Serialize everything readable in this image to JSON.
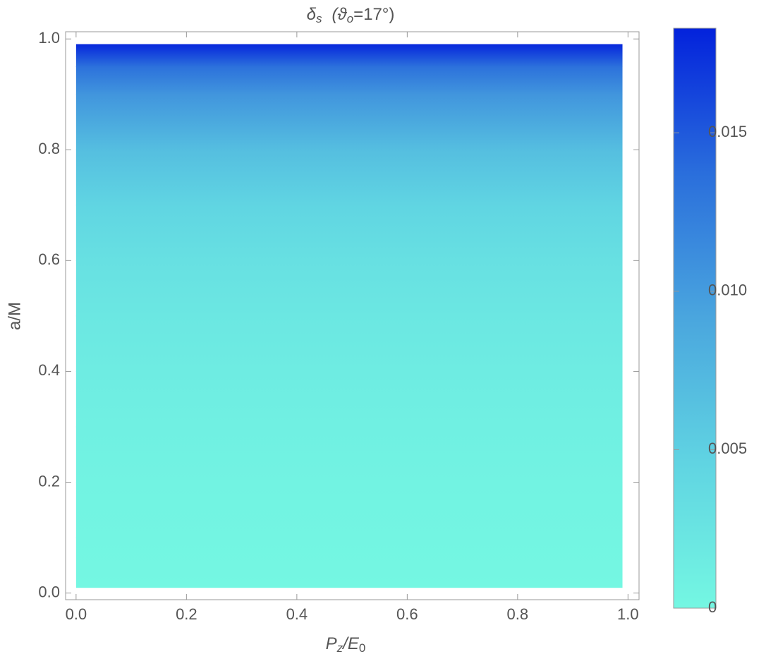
{
  "chart_data": {
    "type": "density",
    "title": [
      "δ",
      "s",
      "(ϑ",
      "o",
      "=17°)"
    ],
    "x_label": [
      "P",
      "z",
      "/E",
      "0"
    ],
    "y_label": "a/M",
    "x_range": [
      0,
      0.99
    ],
    "y": [
      0.01,
      0.1,
      0.2,
      0.3,
      0.4,
      0.5,
      0.6,
      0.7,
      0.8,
      0.9,
      0.95,
      0.99
    ],
    "values": [
      0,
      0.0002,
      0.0005,
      0.0009,
      0.0014,
      0.0021,
      0.003,
      0.0045,
      0.0068,
      0.0105,
      0.0135,
      0.018
    ],
    "xlim": [
      -0.019,
      1.02
    ],
    "ylim": [
      -0.012,
      1.013
    ],
    "xticks": [
      {
        "value": 0,
        "label": "0.0"
      },
      {
        "value": 0.2,
        "label": "0.2"
      },
      {
        "value": 0.4,
        "label": "0.4"
      },
      {
        "value": 0.6,
        "label": "0.6"
      },
      {
        "value": 0.8,
        "label": "0.8"
      },
      {
        "value": 1,
        "label": "1.0"
      }
    ],
    "yticks": [
      {
        "value": 0,
        "label": "0.0"
      },
      {
        "value": 0.2,
        "label": "0.2"
      },
      {
        "value": 0.4,
        "label": "0.4"
      },
      {
        "value": 0.6,
        "label": "0.6"
      },
      {
        "value": 0.8,
        "label": "0.8"
      },
      {
        "value": 1,
        "label": "1.0"
      }
    ],
    "clim": [
      0,
      0.0183
    ],
    "cticks": [
      0,
      0.005,
      {
        "value": 0.01,
        "label": "0.010"
      },
      0.015
    ],
    "colormap": [
      "#74f7e2",
      "#60d4e2",
      "#4aa6de",
      "#2a6edc",
      "#0322dc"
    ]
  }
}
